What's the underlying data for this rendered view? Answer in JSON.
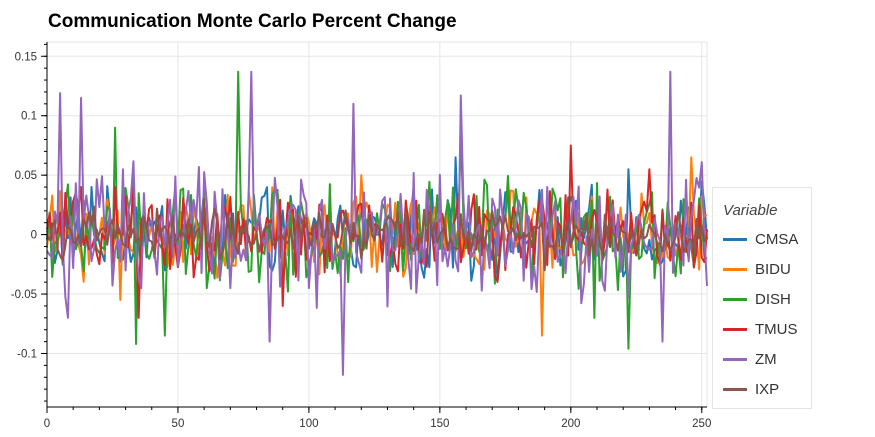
{
  "chart_data": {
    "type": "line",
    "title": "Communication Monte Carlo Percent Change",
    "xlabel": "",
    "ylabel": "",
    "xlim": [
      0,
      252
    ],
    "ylim": [
      -0.145,
      0.162
    ],
    "x_ticks": [
      "0",
      "50",
      "100",
      "150",
      "200",
      "250"
    ],
    "y_ticks": [
      "0.15",
      "0.1",
      "0.05",
      "0",
      "-0.05",
      "-0.1"
    ],
    "legend_title": "Variable",
    "legend_position": "right",
    "grid": true,
    "series_generation": "each series is a 253-point daily percent-change path (x = 0..252); values oscillate roughly within the amplitude bounds given, peaks reproduced at listed points",
    "series": [
      {
        "name": "CMSA",
        "color": "#1f77b4",
        "amplitude": 0.035,
        "peaks": [
          [
            17,
            0.04
          ],
          [
            156,
            0.065
          ],
          [
            222,
            0.055
          ],
          [
            250,
            0.045
          ]
        ]
      },
      {
        "name": "BIDU",
        "color": "#ff7f0e",
        "amplitude": 0.035,
        "peaks": [
          [
            28,
            -0.055
          ],
          [
            189,
            -0.085
          ],
          [
            246,
            0.065
          ],
          [
            120,
            0.05
          ]
        ]
      },
      {
        "name": "DISH",
        "color": "#2ca02c",
        "amplitude": 0.045,
        "peaks": [
          [
            73,
            0.137
          ],
          [
            26,
            0.09
          ],
          [
            34,
            -0.092
          ],
          [
            45,
            -0.085
          ],
          [
            158,
            0.085
          ],
          [
            222,
            -0.096
          ],
          [
            209,
            -0.07
          ]
        ]
      },
      {
        "name": "TMUS",
        "color": "#d62728",
        "amplitude": 0.035,
        "peaks": [
          [
            13,
            0.04
          ],
          [
            35,
            -0.07
          ],
          [
            200,
            0.075
          ],
          [
            230,
            0.055
          ],
          [
            90,
            -0.06
          ]
        ]
      },
      {
        "name": "ZM",
        "color": "#9467bd",
        "amplitude": 0.055,
        "peaks": [
          [
            5,
            0.119
          ],
          [
            13,
            0.115
          ],
          [
            78,
            0.137
          ],
          [
            113,
            -0.118
          ],
          [
            117,
            0.11
          ],
          [
            158,
            0.117
          ],
          [
            238,
            0.137
          ],
          [
            235,
            -0.09
          ],
          [
            85,
            -0.09
          ],
          [
            8,
            -0.07
          ]
        ]
      },
      {
        "name": "IXP",
        "color": "#8c564b",
        "amplitude": 0.02,
        "peaks": [
          [
            60,
            0.03
          ],
          [
            190,
            -0.03
          ]
        ]
      }
    ]
  }
}
